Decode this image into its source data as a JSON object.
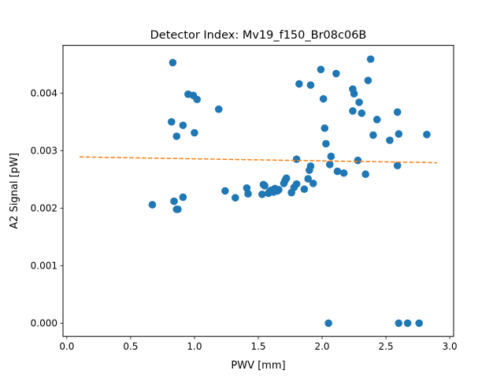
{
  "chart_data": {
    "type": "scatter",
    "title": "Detector Index: Mv19_f150_Br08c06B",
    "xlabel": "PWV [mm]",
    "ylabel": "A2 Signal [pW]",
    "xlim": [
      -0.03,
      3.03
    ],
    "ylim": [
      -0.00023,
      0.00483
    ],
    "xticks": [
      0.0,
      0.5,
      1.0,
      1.5,
      2.0,
      2.5,
      3.0
    ],
    "xtick_labels": [
      "0.0",
      "0.5",
      "1.0",
      "1.5",
      "2.0",
      "2.5",
      "3.0"
    ],
    "yticks": [
      0.0,
      0.001,
      0.002,
      0.003,
      0.004
    ],
    "ytick_labels": [
      "0.000",
      "0.001",
      "0.002",
      "0.003",
      "0.004"
    ],
    "grid": false,
    "colors": {
      "points": "#1f77b4",
      "fit": "#ff7f0e"
    },
    "series": [
      {
        "name": "data",
        "kind": "points",
        "x": [
          0.83,
          0.67,
          0.84,
          0.87,
          0.86,
          0.91,
          0.82,
          0.91,
          0.86,
          0.95,
          0.99,
          1.02,
          1.0,
          1.19,
          1.24,
          1.32,
          1.41,
          1.42,
          1.53,
          1.54,
          1.55,
          1.58,
          1.59,
          1.6,
          1.62,
          1.63,
          1.65,
          1.66,
          1.7,
          1.71,
          1.72,
          1.76,
          1.78,
          1.8,
          1.86,
          1.89,
          1.9,
          1.91,
          1.93,
          1.8,
          1.82,
          1.91,
          1.99,
          2.02,
          2.01,
          2.03,
          2.06,
          2.07,
          2.11,
          2.12,
          2.17,
          2.24,
          2.25,
          2.24,
          2.28,
          2.29,
          2.31,
          2.34,
          2.36,
          2.38,
          2.4,
          2.43,
          2.53,
          2.59,
          2.6,
          2.59,
          2.82,
          2.05,
          2.6,
          2.67,
          2.76
        ],
        "y": [
          0.00453,
          0.00206,
          0.00212,
          0.00198,
          0.00198,
          0.00219,
          0.0035,
          0.00344,
          0.00325,
          0.00398,
          0.00396,
          0.00389,
          0.00331,
          0.00372,
          0.0023,
          0.00218,
          0.00235,
          0.00225,
          0.00224,
          0.00241,
          0.00239,
          0.00226,
          0.00229,
          0.00231,
          0.00228,
          0.00234,
          0.0023,
          0.00232,
          0.00243,
          0.00248,
          0.00252,
          0.00227,
          0.00236,
          0.00242,
          0.00233,
          0.00251,
          0.00266,
          0.00273,
          0.00243,
          0.00285,
          0.00416,
          0.00414,
          0.00441,
          0.00339,
          0.0039,
          0.00312,
          0.00276,
          0.0029,
          0.00434,
          0.00264,
          0.00261,
          0.00407,
          0.00399,
          0.00369,
          0.00283,
          0.00384,
          0.00365,
          0.00259,
          0.00422,
          0.00459,
          0.00327,
          0.00354,
          0.00318,
          0.00367,
          0.00329,
          0.00274,
          0.00328,
          0.0,
          0.0,
          0.0,
          0.0
        ]
      },
      {
        "name": "fit",
        "kind": "dashed-line",
        "x": [
          0.1,
          2.9
        ],
        "y": [
          0.00289,
          0.00279
        ]
      }
    ]
  }
}
